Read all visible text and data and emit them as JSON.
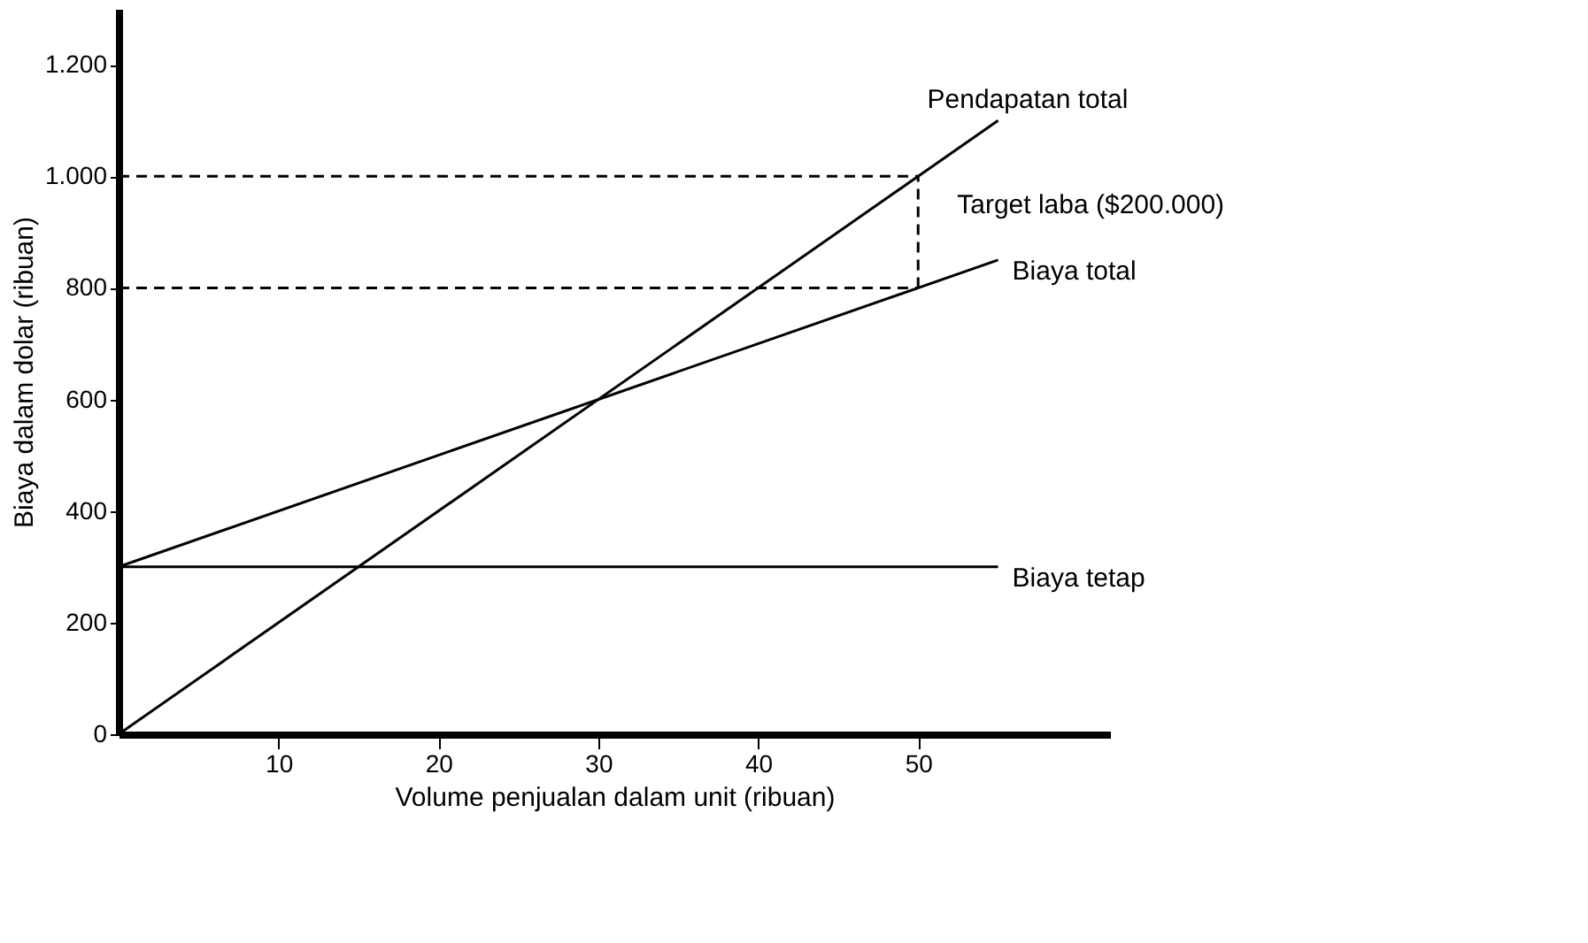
{
  "chart_data": {
    "type": "line",
    "xlabel": "Volume penjualan dalam unit (ribuan)",
    "ylabel": "Biaya dalam dolar (ribuan)",
    "xlim": [
      0,
      62
    ],
    "xticks": [
      10,
      20,
      30,
      40,
      50
    ],
    "ylim": [
      0,
      1300
    ],
    "yticks": [
      0,
      200,
      400,
      600,
      800,
      {
        "value": 1000,
        "label": "1.000"
      },
      {
        "value": 1200,
        "label": "1.200"
      }
    ],
    "grid": false,
    "marker": "none",
    "line_style": "solid",
    "series": [
      {
        "name": "Pendapatan total",
        "color": "#000000",
        "x": [
          0,
          55
        ],
        "values": [
          0,
          1100
        ]
      },
      {
        "name": "Biaya total",
        "color": "#000000",
        "x": [
          0,
          55
        ],
        "values": [
          300,
          850
        ]
      },
      {
        "name": "Biaya tetap",
        "color": "#000000",
        "x": [
          0,
          55
        ],
        "values": [
          300,
          300
        ]
      },
      {
        "color": "#000000",
        "x": [
          0,
          50
        ],
        "values": [
          1000,
          1000
        ],
        "line_style": "dashed"
      },
      {
        "color": "#000000",
        "x": [
          0,
          50
        ],
        "values": [
          800,
          800
        ],
        "line_style": "dashed"
      },
      {
        "color": "#000000",
        "x": [
          50,
          50
        ],
        "values": [
          800,
          1000
        ],
        "line_style": "dashed"
      }
    ],
    "annotations": [
      {
        "text": "Target laba ($200.000)",
        "x": 50,
        "y": 950
      }
    ]
  }
}
